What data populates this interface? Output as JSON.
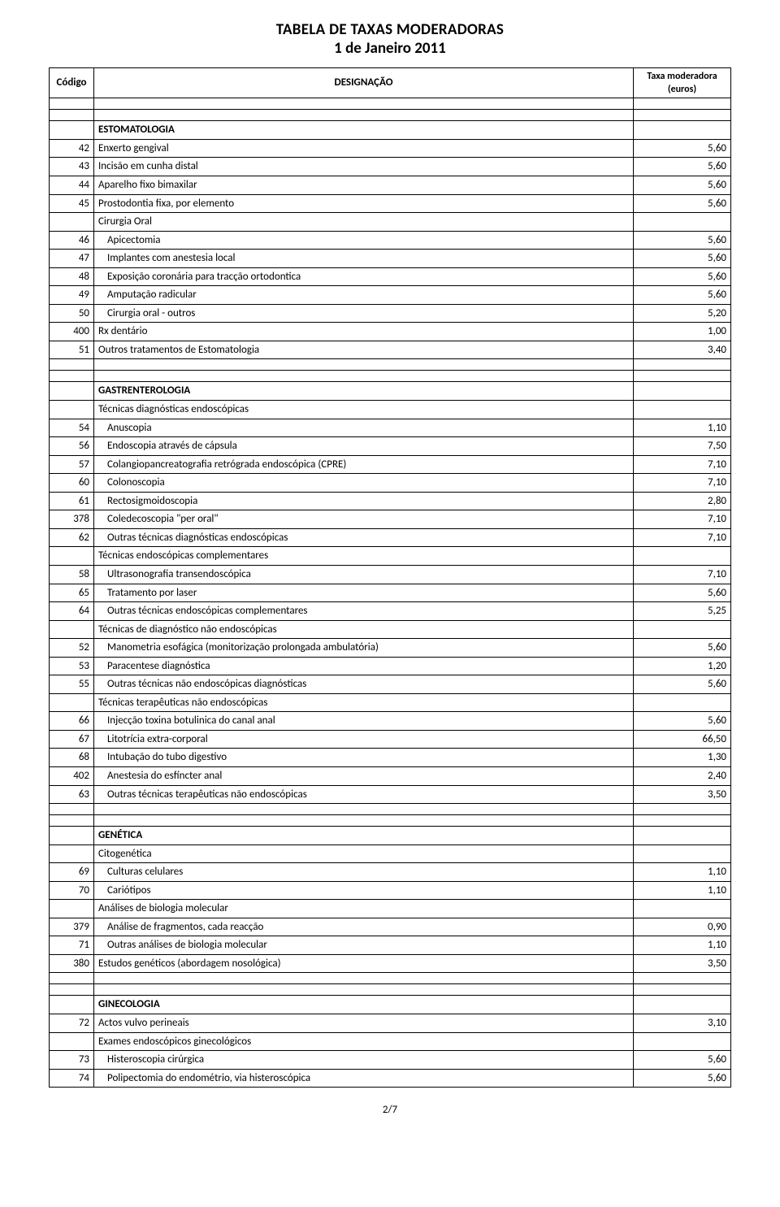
{
  "title_line1": "TABELA DE TAXAS MODERADORAS",
  "title_line2": "1 de Janeiro 2011",
  "headers": {
    "code": "Código",
    "desc": "DESIGNAÇÃO",
    "rate_l1": "Taxa moderadora",
    "rate_l2": "(euros)"
  },
  "page_number": "2/7",
  "rows": [
    {
      "t": "gap"
    },
    {
      "t": "gap"
    },
    {
      "t": "h",
      "d": "ESTOMATOLOGIA"
    },
    {
      "t": "r",
      "c": "42",
      "d": "Enxerto gengival",
      "v": "5,60"
    },
    {
      "t": "r",
      "c": "43",
      "d": "Incisão em cunha distal",
      "v": "5,60"
    },
    {
      "t": "r",
      "c": "44",
      "d": "Aparelho fixo bimaxilar",
      "v": "5,60"
    },
    {
      "t": "r",
      "c": "45",
      "d": "Prostodontia fixa, por elemento",
      "v": "5,60"
    },
    {
      "t": "s",
      "d": "Cirurgia Oral"
    },
    {
      "t": "ri",
      "c": "46",
      "d": "Apicectomia",
      "v": "5,60"
    },
    {
      "t": "ri",
      "c": "47",
      "d": "Implantes com anestesia local",
      "v": "5,60"
    },
    {
      "t": "ri",
      "c": "48",
      "d": "Exposição coronária para tracção ortodontica",
      "v": "5,60"
    },
    {
      "t": "ri",
      "c": "49",
      "d": "Amputação radicular",
      "v": "5,60"
    },
    {
      "t": "ri",
      "c": "50",
      "d": "Cirurgia oral - outros",
      "v": "5,20"
    },
    {
      "t": "r",
      "c": "400",
      "d": "Rx dentário",
      "v": "1,00"
    },
    {
      "t": "r",
      "c": "51",
      "d": "Outros tratamentos de Estomatologia",
      "v": "3,40"
    },
    {
      "t": "gap"
    },
    {
      "t": "gap"
    },
    {
      "t": "h",
      "d": "GASTRENTEROLOGIA"
    },
    {
      "t": "s",
      "d": "Técnicas diagnósticas endoscópicas"
    },
    {
      "t": "ri",
      "c": "54",
      "d": "Anuscopia",
      "v": "1,10"
    },
    {
      "t": "ri",
      "c": "56",
      "d": "Endoscopia através de cápsula",
      "v": "7,50"
    },
    {
      "t": "ri",
      "c": "57",
      "d": "Colangiopancreatografia retrógrada endoscópica (CPRE)",
      "v": "7,10"
    },
    {
      "t": "ri",
      "c": "60",
      "d": "Colonoscopia",
      "v": "7,10"
    },
    {
      "t": "ri",
      "c": "61",
      "d": "Rectosigmoidoscopia",
      "v": "2,80"
    },
    {
      "t": "ri",
      "c": "378",
      "d": "Coledecoscopia \"per oral\"",
      "v": "7,10"
    },
    {
      "t": "ri",
      "c": "62",
      "d": "Outras técnicas diagnósticas endoscópicas",
      "v": "7,10"
    },
    {
      "t": "s",
      "d": "Técnicas endoscópicas complementares"
    },
    {
      "t": "ri",
      "c": "58",
      "d": "Ultrasonografia transendoscópica",
      "v": "7,10"
    },
    {
      "t": "ri",
      "c": "65",
      "d": "Tratamento por laser",
      "v": "5,60"
    },
    {
      "t": "ri",
      "c": "64",
      "d": "Outras técnicas endoscópicas complementares",
      "v": "5,25"
    },
    {
      "t": "s",
      "d": "Técnicas de diagnóstico não endoscópicas"
    },
    {
      "t": "ri",
      "c": "52",
      "d": "Manometria esofágica (monitorização prolongada ambulatória)",
      "v": "5,60"
    },
    {
      "t": "ri",
      "c": "53",
      "d": "Paracentese diagnóstica",
      "v": "1,20"
    },
    {
      "t": "ri",
      "c": "55",
      "d": "Outras técnicas não endoscópicas diagnósticas",
      "v": "5,60"
    },
    {
      "t": "s",
      "d": "Técnicas terapêuticas não endoscópicas"
    },
    {
      "t": "ri",
      "c": "66",
      "d": "Injecção toxina botulinica do canal anal",
      "v": "5,60"
    },
    {
      "t": "ri",
      "c": "67",
      "d": "Litotrícia extra-corporal",
      "v": "66,50"
    },
    {
      "t": "ri",
      "c": "68",
      "d": "Intubação do tubo digestivo",
      "v": "1,30"
    },
    {
      "t": "ri",
      "c": "402",
      "d": "Anestesia do esfíncter anal",
      "v": "2,40"
    },
    {
      "t": "ri",
      "c": "63",
      "d": "Outras técnicas terapêuticas não endoscópicas",
      "v": "3,50"
    },
    {
      "t": "gap"
    },
    {
      "t": "gap"
    },
    {
      "t": "h",
      "d": "GENÉTICA"
    },
    {
      "t": "s",
      "d": "Citogenética"
    },
    {
      "t": "ri",
      "c": "69",
      "d": "Culturas celulares",
      "v": "1,10"
    },
    {
      "t": "ri",
      "c": "70",
      "d": "Cariótipos",
      "v": "1,10"
    },
    {
      "t": "s",
      "d": "Análises de biologia molecular"
    },
    {
      "t": "ri",
      "c": "379",
      "d": "Análise de fragmentos, cada reacção",
      "v": "0,90"
    },
    {
      "t": "ri",
      "c": "71",
      "d": "Outras análises de biologia molecular",
      "v": "1,10"
    },
    {
      "t": "r",
      "c": "380",
      "d": "Estudos genéticos (abordagem nosológica)",
      "v": "3,50"
    },
    {
      "t": "gap"
    },
    {
      "t": "gap"
    },
    {
      "t": "h",
      "d": "GINECOLOGIA"
    },
    {
      "t": "r",
      "c": "72",
      "d": "Actos vulvo perineais",
      "v": "3,10"
    },
    {
      "t": "s",
      "d": "Exames endoscópicos ginecológicos"
    },
    {
      "t": "ri",
      "c": "73",
      "d": "Histeroscopia cirúrgica",
      "v": "5,60"
    },
    {
      "t": "ri",
      "c": "74",
      "d": "Polipectomia do endométrio, via histeroscópica",
      "v": "5,60"
    }
  ]
}
